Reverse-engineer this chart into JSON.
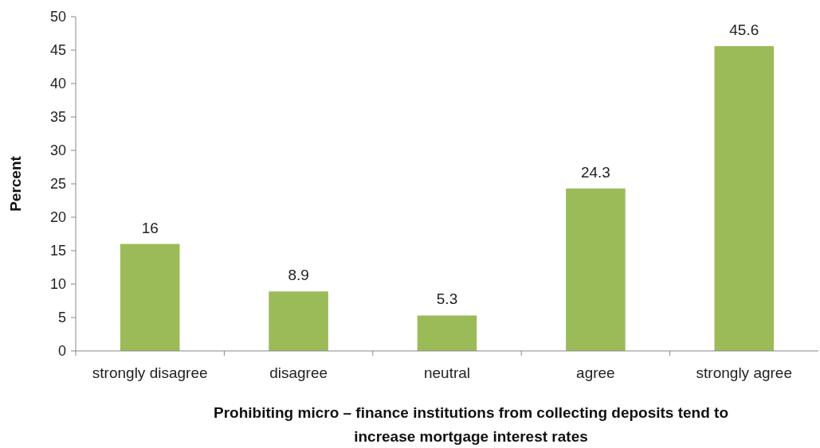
{
  "chart_data": {
    "type": "bar",
    "xlabel": "Prohibiting micro – finance institutions from collecting deposits tend to\nincrease mortgage interest rates",
    "ylabel": "Percent",
    "categories": [
      "strongly disagree",
      "disagree",
      "neutral",
      "agree",
      "strongly agree"
    ],
    "values": [
      16,
      8.9,
      5.3,
      24.3,
      45.6
    ],
    "color": "#9bbb59",
    "ylim": [
      0,
      50
    ],
    "yticks": [
      0,
      5,
      10,
      15,
      20,
      25,
      30,
      35,
      40,
      45,
      50
    ],
    "grid": false,
    "data_labels": true
  }
}
